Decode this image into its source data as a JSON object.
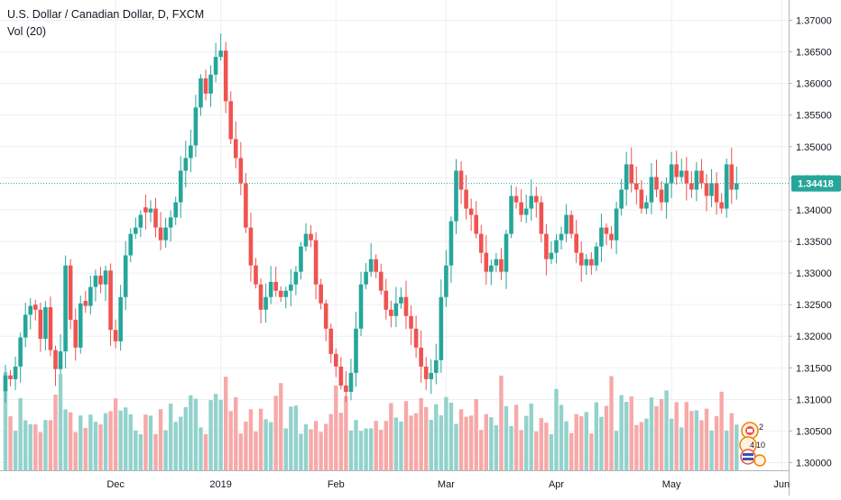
{
  "header": {
    "title": "U.S. Dollar / Canadian Dollar, D, FXCM",
    "volume_label": "Vol (20)"
  },
  "events": {
    "count_top": "2",
    "count_bottom": "4",
    "count_bottom2": "10"
  },
  "colors": {
    "up": "#26a69a",
    "down": "#ef5350",
    "up_volume": "#93d2cc",
    "down_volume": "#f6a9a8",
    "grid": "#eceff2",
    "last_price": "#26a69a"
  },
  "chart_data": {
    "type": "candlestick",
    "title": "U.S. Dollar / Canadian Dollar, D, FXCM",
    "ylim": [
      1.2995,
      1.3715
    ],
    "y_ticks": [
      "1.37000",
      "1.36500",
      "1.36000",
      "1.35500",
      "1.35000",
      "1.34500",
      "1.34000",
      "1.33500",
      "1.33000",
      "1.32500",
      "1.32000",
      "1.31500",
      "1.31000",
      "1.30500",
      "1.30000"
    ],
    "x_labels": [
      "Dec",
      "2019",
      "Feb",
      "Mar",
      "Apr",
      "May",
      "Jun"
    ],
    "x_label_index": [
      22,
      43,
      66,
      88,
      110,
      133,
      155
    ],
    "last_price": 1.34418,
    "last_price_label": "1.34418",
    "volume_label": "Vol (20)",
    "closes": [
      1.3138,
      1.3132,
      1.3152,
      1.3198,
      1.3234,
      1.3248,
      1.3242,
      1.3196,
      1.3246,
      1.3178,
      1.3148,
      1.3176,
      1.3312,
      1.3226,
      1.3182,
      1.3252,
      1.3248,
      1.3278,
      1.3296,
      1.3282,
      1.3304,
      1.321,
      1.3192,
      1.3262,
      1.3328,
      1.3362,
      1.3372,
      1.3392,
      1.3396,
      1.3402,
      1.3372,
      1.3352,
      1.3372,
      1.3388,
      1.3412,
      1.3462,
      1.3482,
      1.3502,
      1.3562,
      1.3608,
      1.3584,
      1.3614,
      1.3642,
      1.3652,
      1.3572,
      1.3512,
      1.3482,
      1.3442,
      1.3372,
      1.3312,
      1.3282,
      1.3242,
      1.3262,
      1.3286,
      1.3272,
      1.3262,
      1.3272,
      1.3282,
      1.3302,
      1.3342,
      1.3362,
      1.3352,
      1.3282,
      1.3252,
      1.3212,
      1.3172,
      1.3152,
      1.3122,
      1.3112,
      1.3142,
      1.3212,
      1.3282,
      1.3302,
      1.3322,
      1.3302,
      1.3272,
      1.3242,
      1.3232,
      1.3252,
      1.3262,
      1.3232,
      1.3212,
      1.3182,
      1.3152,
      1.3132,
      1.3142,
      1.3162,
      1.3262,
      1.3312,
      1.3382,
      1.3462,
      1.3432,
      1.3402,
      1.3392,
      1.3362,
      1.3332,
      1.3302,
      1.3312,
      1.3322,
      1.3302,
      1.3362,
      1.3422,
      1.3412,
      1.3392,
      1.3402,
      1.3422,
      1.3412,
      1.3362,
      1.3322,
      1.3332,
      1.3352,
      1.3362,
      1.3392,
      1.3362,
      1.3332,
      1.3312,
      1.3322,
      1.3312,
      1.3342,
      1.3372,
      1.3362,
      1.3352,
      1.3402,
      1.3432,
      1.3472,
      1.3442,
      1.3432,
      1.3402,
      1.3412,
      1.3452,
      1.3432,
      1.3412,
      1.3442,
      1.3472,
      1.3452,
      1.3462,
      1.3442,
      1.3432,
      1.3462,
      1.3442,
      1.3422,
      1.3442,
      1.3412,
      1.3402,
      1.3472,
      1.3432,
      1.3442
    ]
  }
}
